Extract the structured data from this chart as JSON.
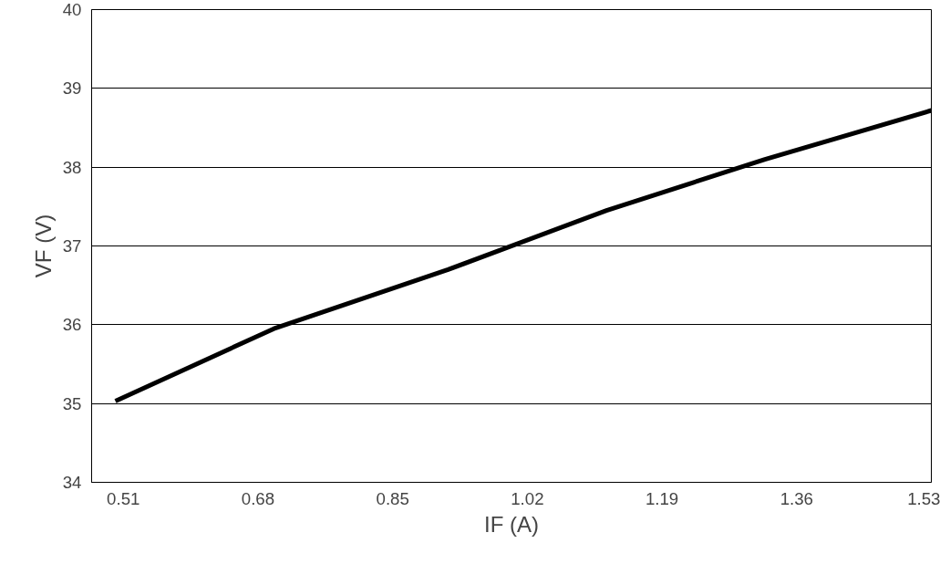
{
  "chart_data": {
    "type": "line",
    "xlabel": "IF (A)",
    "ylabel": "VF (V)",
    "x": [
      0.5,
      0.7,
      0.92,
      1.12,
      1.32,
      1.53
    ],
    "series": [
      {
        "color": "#000000",
        "values": [
          35.03,
          35.95,
          36.7,
          37.45,
          38.1,
          38.72
        ]
      }
    ],
    "xlim": [
      0.47,
      1.53
    ],
    "xticks": [
      0.51,
      0.68,
      0.85,
      1.02,
      1.19,
      1.36,
      1.53
    ],
    "ylim": [
      34,
      40
    ],
    "yticks": [
      34,
      35,
      36,
      37,
      38,
      39,
      40
    ],
    "grid": "y",
    "marker": "none",
    "line_style": "solid"
  }
}
